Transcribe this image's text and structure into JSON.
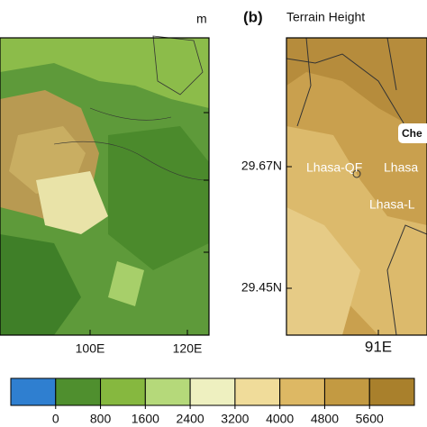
{
  "panel_a": {
    "unit": "m",
    "lon_labels": [
      "100E",
      "120E"
    ]
  },
  "panel_b": {
    "label": "(b)",
    "title": "Terrain Height",
    "lat_labels": [
      "29.67N",
      "29.45N"
    ],
    "lon_labels": [
      "91E"
    ],
    "places": [
      "Che",
      "Lhasa-QF",
      "Lhasa",
      "Lhasa-L"
    ]
  },
  "colorbar": {
    "ticks": [
      0,
      800,
      1600,
      2400,
      3200,
      4000,
      4800,
      5600
    ],
    "colors": [
      "#2f7fd0",
      "#4f8f2e",
      "#86b83f",
      "#b5d97a",
      "#eef0c0",
      "#f0dc9a",
      "#ddb864",
      "#c39a42",
      "#a9802c"
    ]
  }
}
